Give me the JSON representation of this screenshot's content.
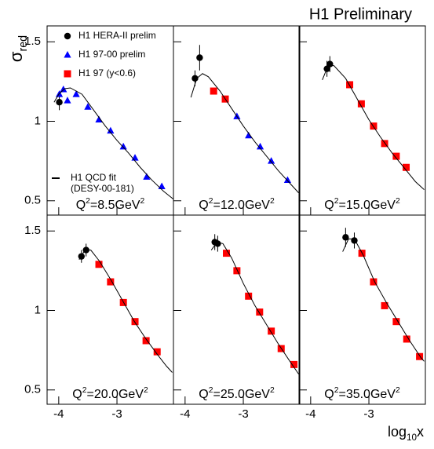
{
  "title": "H1 Preliminary",
  "y_label": [
    "σ",
    "red"
  ],
  "x_label": [
    "log",
    "10",
    "x"
  ],
  "xlim": [
    -4.2,
    -2.03
  ],
  "xticks": [
    -4,
    -3
  ],
  "ylim": [
    0.41,
    1.6
  ],
  "yticks": [
    0.5,
    1,
    1.5
  ],
  "chart_data": [
    {
      "type": "scatter",
      "annotation": [
        "Q",
        "2",
        "=8.5GeV",
        "2"
      ],
      "legend": "upper left",
      "series": [
        {
          "name": "H1 HERA-II prelim",
          "color": "#000000",
          "marker": "circle",
          "x": [
            -3.99
          ],
          "values": [
            1.12
          ],
          "errors": [
            0.05
          ]
        },
        {
          "name": "H1 97-00 prelim",
          "color": "#0000ff",
          "marker": "triangle",
          "x": [
            -3.99,
            -3.92,
            -3.85,
            -3.7,
            -3.5,
            -3.31,
            -3.11,
            -2.89,
            -2.69,
            -2.49,
            -2.23
          ],
          "values": [
            1.17,
            1.2,
            1.13,
            1.17,
            1.09,
            1.01,
            0.94,
            0.84,
            0.77,
            0.65,
            0.59
          ]
        },
        {
          "name": "H1 97 (y<0.6)",
          "color": "#ff0000",
          "marker": "square",
          "x": [],
          "values": []
        },
        {
          "name": "H1 QCD fit",
          "note": "(DESY-00-181)",
          "color": "#000000",
          "marker": "line",
          "x": [
            -4.08,
            -4.0,
            -3.9,
            -3.8,
            -3.6,
            -3.4,
            -3.2,
            -3.0,
            -2.8,
            -2.6,
            -2.4,
            -2.2,
            -2.03
          ],
          "values": [
            1.12,
            1.17,
            1.205,
            1.21,
            1.17,
            1.07,
            0.97,
            0.88,
            0.8,
            0.71,
            0.63,
            0.56,
            0.51
          ]
        }
      ]
    },
    {
      "type": "scatter",
      "annotation": [
        "Q",
        "2",
        "=12.0GeV",
        "2"
      ],
      "series": [
        {
          "name": "H1 HERA-II prelim",
          "color": "#000000",
          "marker": "circle",
          "x": [
            -3.83,
            -3.75
          ],
          "values": [
            1.27,
            1.4
          ],
          "errors": [
            0.05,
            0.08
          ]
        },
        {
          "name": "H1 97-00 prelim",
          "color": "#0000ff",
          "marker": "triangle",
          "x": [
            -3.11,
            -2.91,
            -2.71,
            -2.52,
            -2.24
          ],
          "values": [
            1.03,
            0.91,
            0.84,
            0.75,
            0.63
          ]
        },
        {
          "name": "H1 97 (y<0.6)",
          "color": "#ff0000",
          "marker": "square",
          "x": [
            -3.51,
            -3.31
          ],
          "values": [
            1.19,
            1.14
          ]
        },
        {
          "name": "H1 QCD fit",
          "color": "#000000",
          "marker": "line",
          "x": [
            -3.9,
            -3.8,
            -3.7,
            -3.6,
            -3.4,
            -3.2,
            -3.0,
            -2.8,
            -2.6,
            -2.4,
            -2.2,
            -2.05
          ],
          "values": [
            1.15,
            1.27,
            1.3,
            1.28,
            1.19,
            1.08,
            0.97,
            0.87,
            0.78,
            0.69,
            0.61,
            0.55
          ]
        }
      ]
    },
    {
      "type": "scatter",
      "annotation": [
        "Q",
        "2",
        "=15.0GeV",
        "2"
      ],
      "series": [
        {
          "name": "H1 HERA-II prelim",
          "color": "#000000",
          "marker": "circle",
          "x": [
            -3.72,
            -3.67
          ],
          "values": [
            1.33,
            1.36
          ],
          "errors": [
            0.05,
            0.05
          ]
        },
        {
          "name": "H1 97-00 prelim",
          "color": "#0000ff",
          "marker": "triangle",
          "x": [],
          "values": []
        },
        {
          "name": "H1 97 (y<0.6)",
          "color": "#ff0000",
          "marker": "square",
          "x": [
            -3.33,
            -3.13,
            -2.92,
            -2.73,
            -2.53,
            -2.36
          ],
          "values": [
            1.23,
            1.11,
            0.97,
            0.86,
            0.78,
            0.71
          ]
        },
        {
          "name": "H1 QCD fit",
          "color": "#000000",
          "marker": "line",
          "x": [
            -3.8,
            -3.7,
            -3.6,
            -3.4,
            -3.2,
            -3.0,
            -2.8,
            -2.6,
            -2.4,
            -2.2,
            -2.05
          ],
          "values": [
            1.26,
            1.35,
            1.35,
            1.27,
            1.14,
            1.01,
            0.9,
            0.8,
            0.71,
            0.62,
            0.57
          ]
        }
      ]
    },
    {
      "type": "scatter",
      "annotation": [
        "Q",
        "2",
        "=20.0GeV",
        "2"
      ],
      "series": [
        {
          "name": "H1 HERA-II prelim",
          "color": "#000000",
          "marker": "circle",
          "x": [
            -3.61,
            -3.53
          ],
          "values": [
            1.34,
            1.38
          ],
          "errors": [
            0.04,
            0.04
          ]
        },
        {
          "name": "H1 97-00 prelim",
          "color": "#0000ff",
          "marker": "triangle",
          "x": [],
          "values": []
        },
        {
          "name": "H1 97 (y<0.6)",
          "color": "#ff0000",
          "marker": "square",
          "x": [
            -3.31,
            -3.11,
            -2.89,
            -2.69,
            -2.5,
            -2.31
          ],
          "values": [
            1.29,
            1.18,
            1.05,
            0.93,
            0.81,
            0.74
          ]
        },
        {
          "name": "H1 QCD fit",
          "color": "#000000",
          "marker": "line",
          "x": [
            -3.65,
            -3.55,
            -3.45,
            -3.3,
            -3.1,
            -2.9,
            -2.7,
            -2.5,
            -2.3,
            -2.15,
            -2.05
          ],
          "values": [
            1.32,
            1.38,
            1.38,
            1.31,
            1.19,
            1.06,
            0.93,
            0.82,
            0.72,
            0.65,
            0.61
          ]
        }
      ]
    },
    {
      "type": "scatter",
      "annotation": [
        "Q",
        "2",
        "=25.0GeV",
        "2"
      ],
      "series": [
        {
          "name": "H1 HERA-II prelim",
          "color": "#000000",
          "marker": "circle",
          "x": [
            -3.49,
            -3.44
          ],
          "values": [
            1.43,
            1.42
          ],
          "errors": [
            0.05,
            0.05
          ]
        },
        {
          "name": "H1 97-00 prelim",
          "color": "#0000ff",
          "marker": "triangle",
          "x": [],
          "values": []
        },
        {
          "name": "H1 97 (y<0.6)",
          "color": "#ff0000",
          "marker": "square",
          "x": [
            -3.29,
            -3.11,
            -2.91,
            -2.72,
            -2.52,
            -2.35,
            -2.13
          ],
          "values": [
            1.36,
            1.25,
            1.09,
            0.99,
            0.87,
            0.76,
            0.66
          ]
        },
        {
          "name": "H1 QCD fit",
          "color": "#000000",
          "marker": "line",
          "x": [
            -3.55,
            -3.45,
            -3.35,
            -3.2,
            -3.0,
            -2.8,
            -2.6,
            -2.4,
            -2.2,
            -2.05
          ],
          "values": [
            1.38,
            1.43,
            1.42,
            1.33,
            1.17,
            1.03,
            0.91,
            0.79,
            0.68,
            0.6
          ]
        }
      ]
    },
    {
      "type": "scatter",
      "annotation": [
        "Q",
        "2",
        "=35.0GeV",
        "2"
      ],
      "series": [
        {
          "name": "H1 HERA-II prelim",
          "color": "#000000",
          "marker": "circle",
          "x": [
            -3.4,
            -3.25
          ],
          "values": [
            1.46,
            1.44
          ],
          "errors": [
            0.06,
            0.05
          ]
        },
        {
          "name": "H1 97-00 prelim",
          "color": "#0000ff",
          "marker": "triangle",
          "x": [],
          "values": []
        },
        {
          "name": "H1 97 (y<0.6)",
          "color": "#ff0000",
          "marker": "square",
          "x": [
            -3.12,
            -2.92,
            -2.73,
            -2.53,
            -2.35,
            -2.13
          ],
          "values": [
            1.36,
            1.18,
            1.03,
            0.93,
            0.82,
            0.71
          ]
        },
        {
          "name": "H1 QCD fit",
          "color": "#000000",
          "marker": "line",
          "x": [
            -3.45,
            -3.35,
            -3.25,
            -3.1,
            -2.9,
            -2.7,
            -2.5,
            -2.3,
            -2.1,
            -2.05
          ],
          "values": [
            1.37,
            1.45,
            1.45,
            1.35,
            1.18,
            1.05,
            0.93,
            0.81,
            0.7,
            0.68
          ]
        }
      ]
    }
  ]
}
